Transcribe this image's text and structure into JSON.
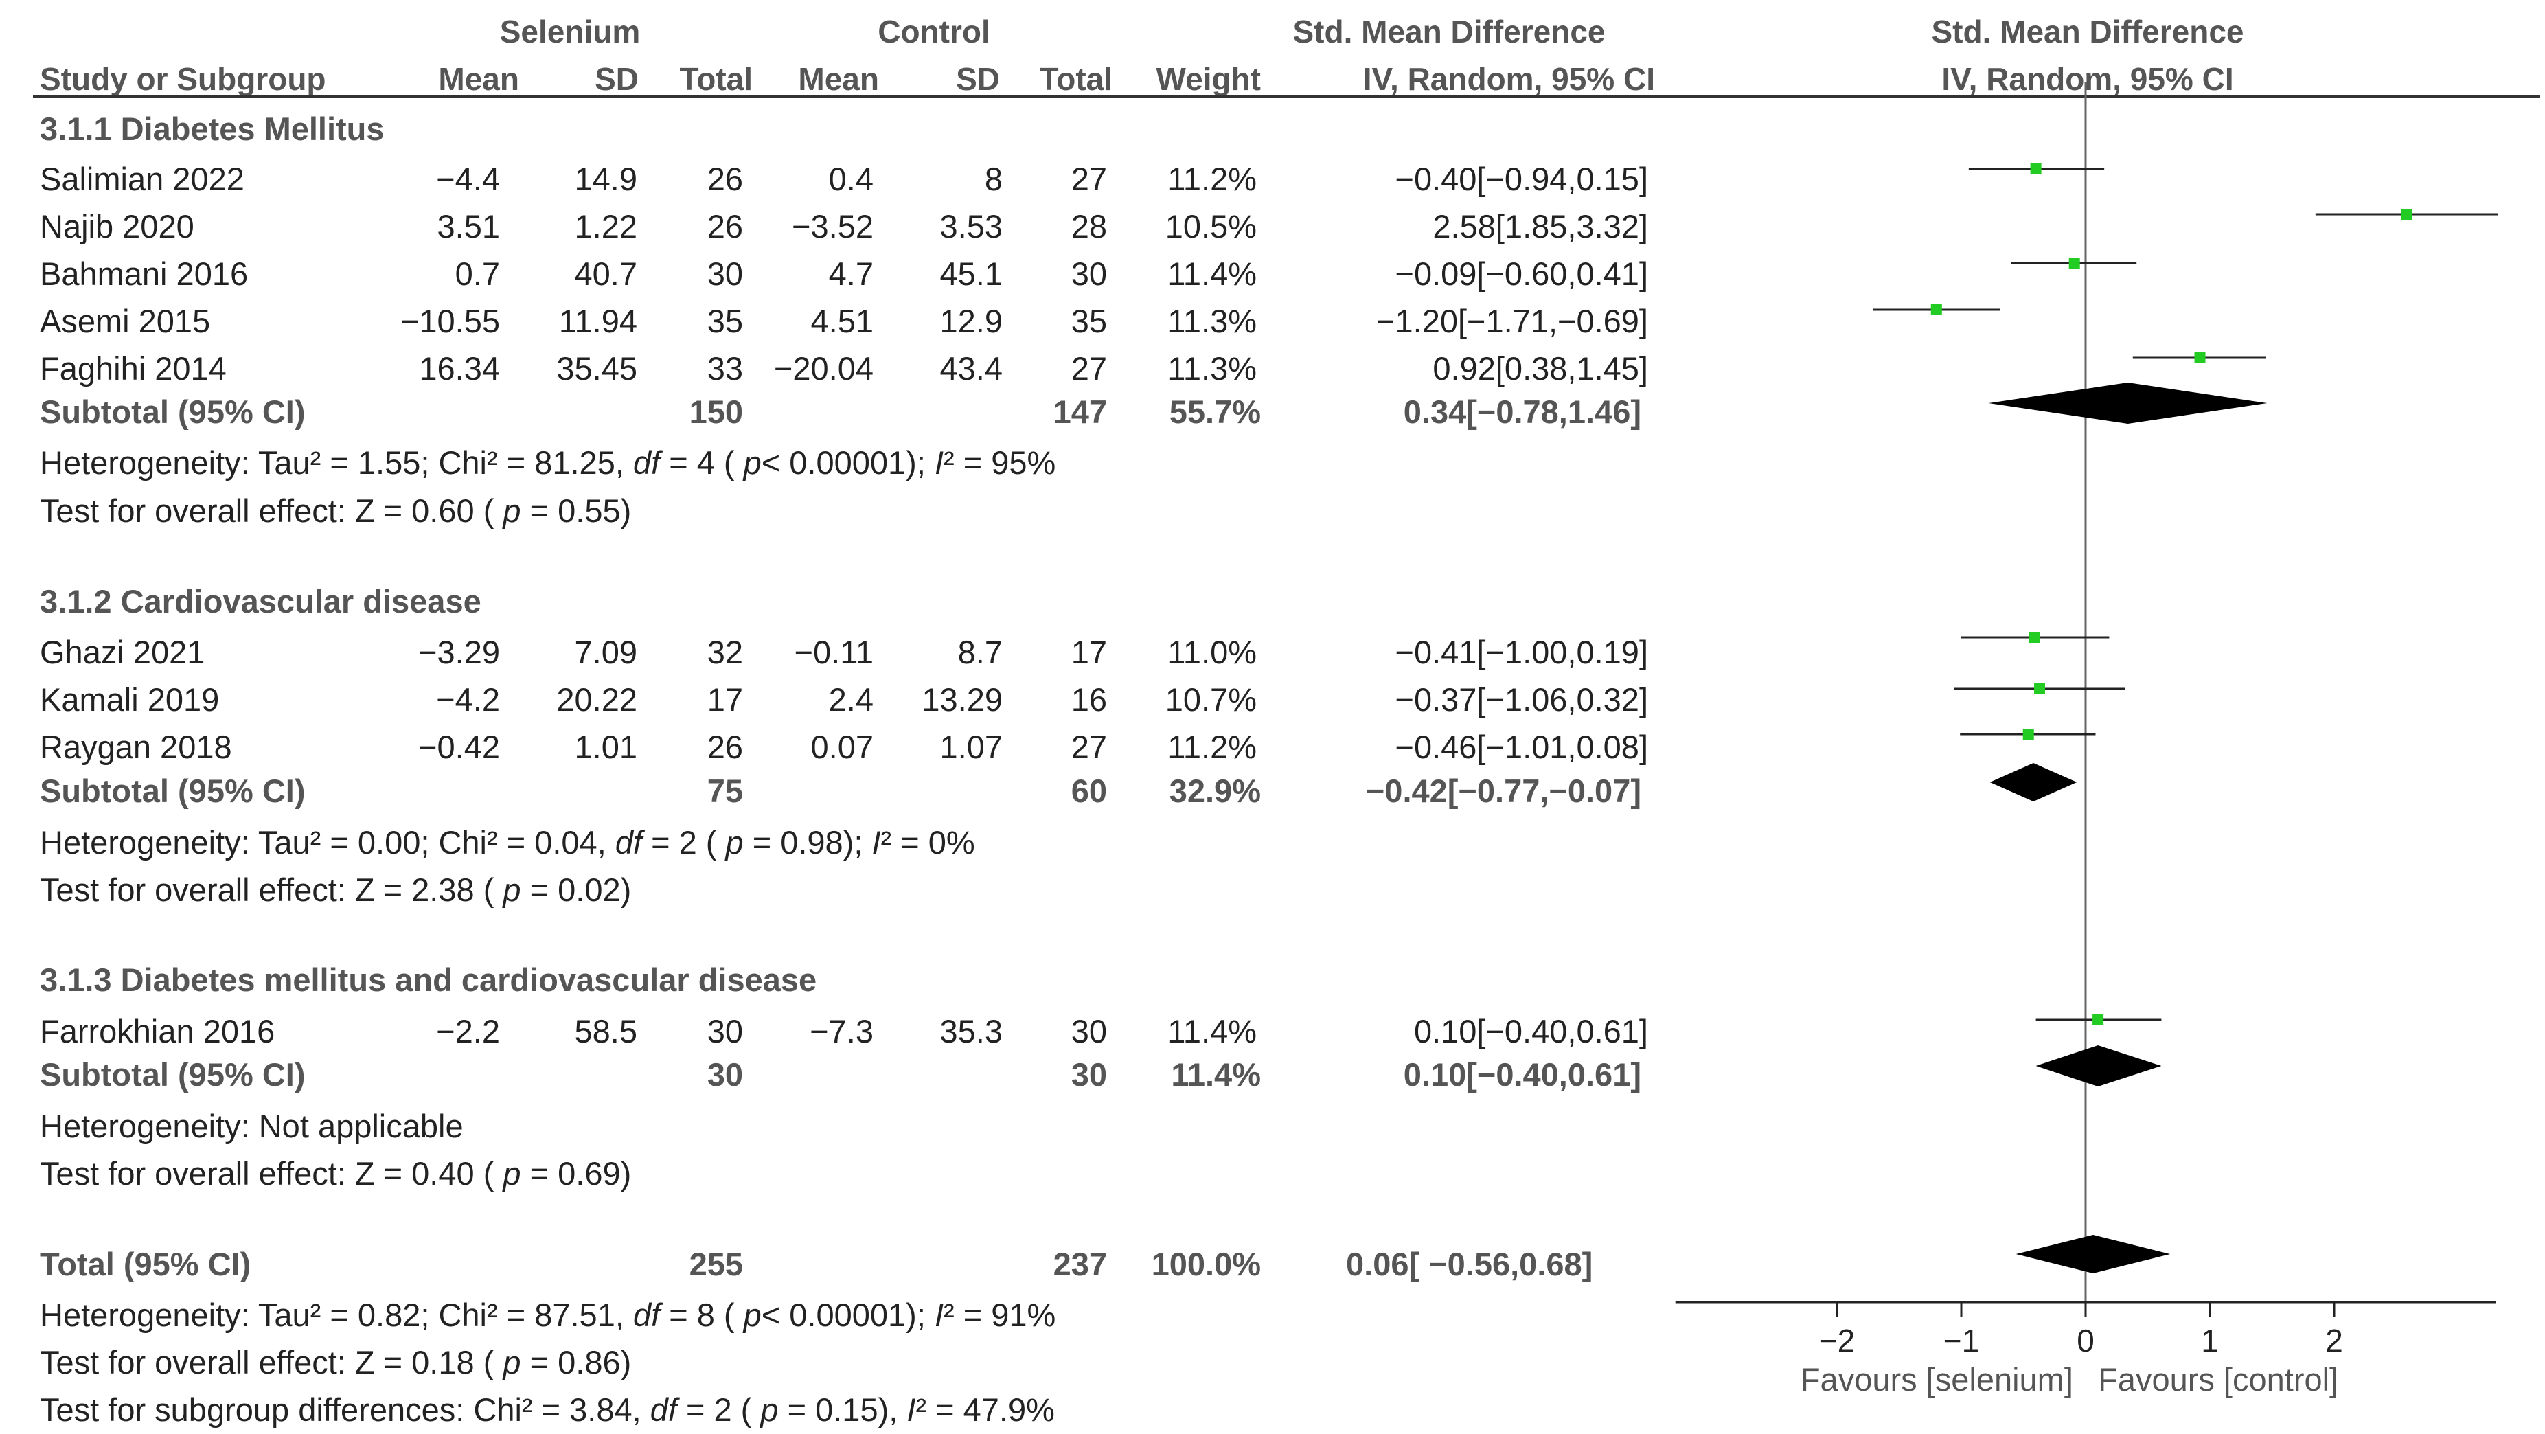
{
  "header": {
    "group1": "Selenium",
    "group2": "Control",
    "effect_title": "Std. Mean Difference",
    "plot_title": "Std. Mean Difference",
    "col_study": "Study or Subgroup",
    "col_mean1": "Mean",
    "col_sd1": "SD",
    "col_total1": "Total",
    "col_mean2": "Mean",
    "col_sd2": "SD",
    "col_total2": "Total",
    "col_weight": "Weight",
    "col_ci": "IV, Random, 95% CI",
    "plot_ci": "IV, Random, 95% CI"
  },
  "subgroups": [
    {
      "title": "3.1.1 Diabetes Mellitus",
      "studies": [
        {
          "name": "Salimian 2022",
          "mean1": "−4.4",
          "sd1": "14.9",
          "total1": "26",
          "mean2": "0.4",
          "sd2": "8",
          "total2": "27",
          "weight": "11.2%",
          "ci": "−0.40[−0.94,0.15]"
        },
        {
          "name": "Najib 2020",
          "mean1": "3.51",
          "sd1": "1.22",
          "total1": "26",
          "mean2": "−3.52",
          "sd2": "3.53",
          "total2": "28",
          "weight": "10.5%",
          "ci": "2.58[1.85,3.32]"
        },
        {
          "name": "Bahmani 2016",
          "mean1": "0.7",
          "sd1": "40.7",
          "total1": "30",
          "mean2": "4.7",
          "sd2": "45.1",
          "total2": "30",
          "weight": "11.4%",
          "ci": "−0.09[−0.60,0.41]"
        },
        {
          "name": "Asemi 2015",
          "mean1": "−10.55",
          "sd1": "11.94",
          "total1": "35",
          "mean2": "4.51",
          "sd2": "12.9",
          "total2": "35",
          "weight": "11.3%",
          "ci": "−1.20[−1.71,−0.69]"
        },
        {
          "name": "Faghihi 2014",
          "mean1": "16.34",
          "sd1": "35.45",
          "total1": "33",
          "mean2": "−20.04",
          "sd2": "43.4",
          "total2": "27",
          "weight": "11.3%",
          "ci": "0.92[0.38,1.45]"
        }
      ],
      "subtotal": {
        "label": "Subtotal (95% CI)",
        "total1": "150",
        "total2": "147",
        "weight": "55.7%",
        "ci": "0.34[−0.78,1.46]"
      },
      "het": {
        "prefix": "Heterogeneity: Tau² = 1.55; Chi² = 81.25,",
        "df_label": "df",
        "df": "= 4 (",
        "p_label": "p",
        "p": "< 0.00001);",
        "i_label": "I",
        "i": "² = 95%"
      },
      "test": {
        "prefix": "Test for overall effect: Z = 0.60 (",
        "p_label": "p",
        "p": "= 0.55)"
      }
    },
    {
      "title": "3.1.2 Cardiovascular disease",
      "studies": [
        {
          "name": "Ghazi 2021",
          "mean1": "−3.29",
          "sd1": "7.09",
          "total1": "32",
          "mean2": "−0.11",
          "sd2": "8.7",
          "total2": "17",
          "weight": "11.0%",
          "ci": "−0.41[−1.00,0.19]"
        },
        {
          "name": "Kamali 2019",
          "mean1": "−4.2",
          "sd1": "20.22",
          "total1": "17",
          "mean2": "2.4",
          "sd2": "13.29",
          "total2": "16",
          "weight": "10.7%",
          "ci": "−0.37[−1.06,0.32]"
        },
        {
          "name": "Raygan 2018",
          "mean1": "−0.42",
          "sd1": "1.01",
          "total1": "26",
          "mean2": "0.07",
          "sd2": "1.07",
          "total2": "27",
          "weight": "11.2%",
          "ci": "−0.46[−1.01,0.08]"
        }
      ],
      "subtotal": {
        "label": "Subtotal (95% CI)",
        "total1": "75",
        "total2": "60",
        "weight": "32.9%",
        "ci": "−0.42[−0.77,−0.07]"
      },
      "het": {
        "prefix": "Heterogeneity: Tau² = 0.00; Chi² = 0.04,",
        "df_label": "df",
        "df": "= 2 (",
        "p_label": "p",
        "p": "= 0.98);",
        "i_label": "I",
        "i": "² = 0%"
      },
      "test": {
        "prefix": "Test for overall effect: Z = 2.38 (",
        "p_label": "p",
        "p": "= 0.02)"
      }
    },
    {
      "title": "3.1.3 Diabetes mellitus and cardiovascular disease",
      "studies": [
        {
          "name": "Farrokhian 2016",
          "mean1": "−2.2",
          "sd1": "58.5",
          "total1": "30",
          "mean2": "−7.3",
          "sd2": "35.3",
          "total2": "30",
          "weight": "11.4%",
          "ci": "0.10[−0.40,0.61]"
        }
      ],
      "subtotal": {
        "label": "Subtotal (95% CI)",
        "total1": "30",
        "total2": "30",
        "weight": "11.4%",
        "ci": "0.10[−0.40,0.61]"
      },
      "het": {
        "prefix": "Heterogeneity: Not applicable"
      },
      "test": {
        "prefix": "Test for overall effect: Z = 0.40 (",
        "p_label": "p",
        "p": "= 0.69)"
      }
    }
  ],
  "total": {
    "label": "Total (95% CI)",
    "total1": "255",
    "total2": "237",
    "weight": "100.0%",
    "ci": "0.06[ −0.56,0.68]",
    "het": {
      "prefix": "Heterogeneity: Tau² = 0.82; Chi² = 87.51,",
      "df_label": "df",
      "df": "= 8 (",
      "p_label": "p",
      "p": "< 0.00001);",
      "i_label": "I",
      "i": "² = 91%"
    },
    "test": {
      "prefix": "Test for overall effect: Z = 0.18 (",
      "p_label": "p",
      "p": "= 0.86)"
    },
    "subgroup": {
      "prefix": "Test for subgroup differences: Chi² = 3.84,",
      "df_label": "df",
      "df": "= 2 (",
      "p_label": "p",
      "p": "= 0.15),",
      "i_label": "I",
      "i": "² = 47.9%"
    }
  },
  "chart_data": {
    "type": "forest",
    "title": "Std. Mean Difference IV, Random, 95% CI",
    "xlabel_left": "Favours [selenium]",
    "xlabel_right": "Favours [control]",
    "xlim": [
      -3.3,
      3.3
    ],
    "ticks": [
      -2,
      -1,
      0,
      1,
      2
    ],
    "tick_labels": [
      "−2",
      "−1",
      "0",
      "1",
      "2"
    ],
    "colors": {
      "point": "#22cc22",
      "diamond": "#000000",
      "line": "#222222",
      "zero": "#666666"
    },
    "studies": [
      {
        "name": "Salimian 2022",
        "est": -0.4,
        "lo": -0.94,
        "hi": 0.15
      },
      {
        "name": "Najib 2020",
        "est": 2.58,
        "lo": 1.85,
        "hi": 3.32
      },
      {
        "name": "Bahmani 2016",
        "est": -0.09,
        "lo": -0.6,
        "hi": 0.41
      },
      {
        "name": "Asemi 2015",
        "est": -1.2,
        "lo": -1.71,
        "hi": -0.69
      },
      {
        "name": "Faghihi 2014",
        "est": 0.92,
        "lo": 0.38,
        "hi": 1.45
      },
      {
        "name": "Ghazi 2021",
        "est": -0.41,
        "lo": -1.0,
        "hi": 0.19
      },
      {
        "name": "Kamali 2019",
        "est": -0.37,
        "lo": -1.06,
        "hi": 0.32
      },
      {
        "name": "Raygan 2018",
        "est": -0.46,
        "lo": -1.01,
        "hi": 0.08
      },
      {
        "name": "Farrokhian 2016",
        "est": 0.1,
        "lo": -0.4,
        "hi": 0.61
      }
    ],
    "diamonds": [
      {
        "name": "Subtotal 3.1.1",
        "est": 0.34,
        "lo": -0.78,
        "hi": 1.46
      },
      {
        "name": "Subtotal 3.1.2",
        "est": -0.42,
        "lo": -0.77,
        "hi": -0.07
      },
      {
        "name": "Subtotal 3.1.3",
        "est": 0.1,
        "lo": -0.4,
        "hi": 0.61
      },
      {
        "name": "Total",
        "est": 0.06,
        "lo": -0.56,
        "hi": 0.68
      }
    ]
  }
}
